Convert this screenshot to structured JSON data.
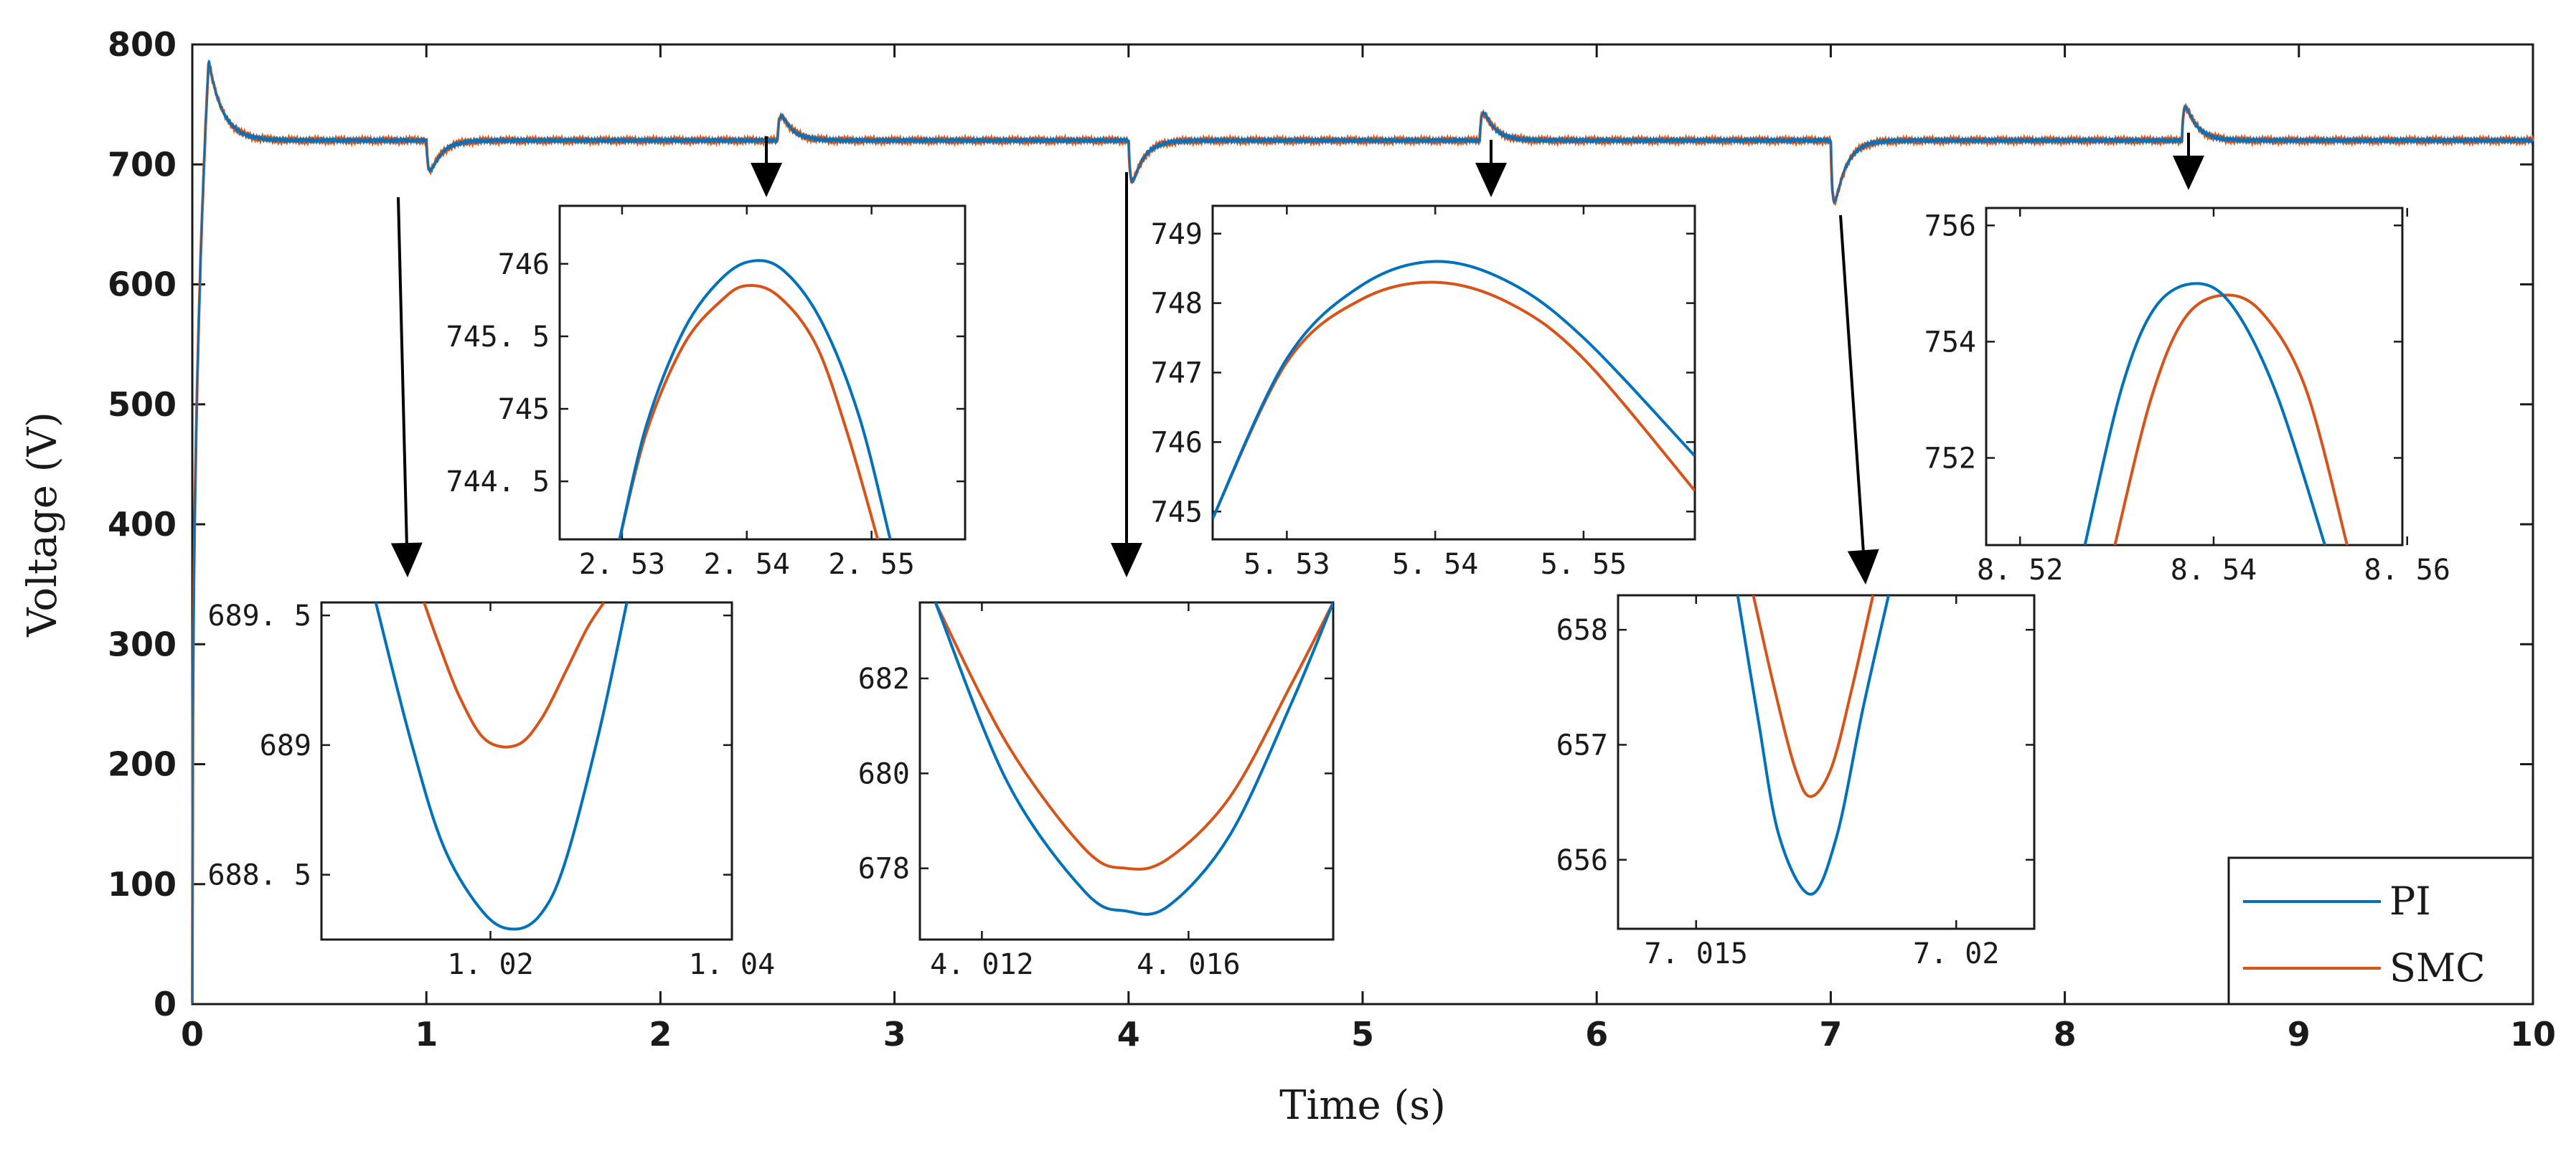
{
  "chart_data": {
    "main": {
      "type": "line",
      "xlabel": "Time (s)",
      "ylabel": "Voltage (V)",
      "xlim": [
        0,
        10
      ],
      "ylim": [
        0,
        800
      ],
      "xticks": [
        "0",
        "1",
        "2",
        "3",
        "4",
        "5",
        "6",
        "7",
        "8",
        "9",
        "10"
      ],
      "yticks": [
        "0",
        "100",
        "200",
        "300",
        "400",
        "500",
        "600",
        "700",
        "800"
      ],
      "steady_state": 720,
      "startup": {
        "peak_time": 0.07,
        "peak": 787
      },
      "events": [
        {
          "t": 1.0,
          "extreme": 688
        },
        {
          "t": 2.5,
          "extreme": 746
        },
        {
          "t": 4.0,
          "extreme": 677
        },
        {
          "t": 5.5,
          "extreme": 749
        },
        {
          "t": 7.0,
          "extreme": 655
        },
        {
          "t": 8.5,
          "extreme": 755
        }
      ],
      "series": [
        {
          "name": "PI",
          "color": "#0072bd"
        },
        {
          "name": "SMC",
          "color": "#d95319"
        }
      ],
      "legend": {
        "position": "bottom-right",
        "entries": [
          "PI",
          "SMC"
        ]
      }
    },
    "insets": [
      {
        "name": "zoom-1s",
        "xlim": [
          1.006,
          1.04
        ],
        "ylim": [
          688.25,
          689.55
        ],
        "xticks": [
          {
            "v": 1.02,
            "label": "1. 02"
          },
          {
            "v": 1.04,
            "label": "1. 04"
          }
        ],
        "yticks": [
          {
            "v": 688.5,
            "label": "688. 5"
          },
          {
            "v": 689,
            "label": "689"
          },
          {
            "v": 689.5,
            "label": "689. 5"
          }
        ],
        "PI": {
          "x": [
            1.0105,
            1.0135,
            1.0162,
            1.0195,
            1.022,
            1.0242,
            1.0262,
            1.029,
            1.0313
          ],
          "y": [
            689.55,
            689.0,
            688.6,
            688.35,
            688.29,
            688.35,
            688.55,
            689.05,
            689.55
          ]
        },
        "SMC": {
          "x": [
            1.0145,
            1.0158,
            1.0175,
            1.0196,
            1.0222,
            1.0242,
            1.0262,
            1.028,
            1.0294
          ],
          "y": [
            689.55,
            689.38,
            689.18,
            689.02,
            689.0,
            689.1,
            689.28,
            689.45,
            689.55
          ]
        }
      },
      {
        "name": "zoom-2.5s",
        "xlim": [
          2.525,
          2.5575
        ],
        "ylim": [
          744.1,
          746.4
        ],
        "xticks": [
          {
            "v": 2.53,
            "label": "2. 53"
          },
          {
            "v": 2.54,
            "label": "2. 54"
          },
          {
            "v": 2.55,
            "label": "2. 55"
          }
        ],
        "yticks": [
          {
            "v": 744.5,
            "label": "744. 5"
          },
          {
            "v": 745,
            "label": "745"
          },
          {
            "v": 745.5,
            "label": "745. 5"
          },
          {
            "v": 746,
            "label": "746"
          }
        ],
        "PI": {
          "x": [
            2.5298,
            2.532,
            2.535,
            2.538,
            2.5405,
            2.543,
            2.546,
            2.549,
            2.5515
          ],
          "y": [
            744.1,
            744.9,
            745.55,
            745.9,
            746.02,
            745.95,
            745.6,
            744.95,
            744.1
          ]
        },
        "SMC": {
          "x": [
            2.5298,
            2.532,
            2.535,
            2.538,
            2.54,
            2.5425,
            2.5455,
            2.548,
            2.5505
          ],
          "y": [
            744.1,
            744.85,
            745.45,
            745.75,
            745.85,
            745.78,
            745.45,
            744.85,
            744.1
          ]
        }
      },
      {
        "name": "zoom-5.5s",
        "xlim": [
          5.525,
          5.5575
        ],
        "ylim": [
          744.6,
          749.4
        ],
        "xticks": [
          {
            "v": 5.53,
            "label": "5. 53"
          },
          {
            "v": 5.54,
            "label": "5. 54"
          },
          {
            "v": 5.55,
            "label": "5. 55"
          }
        ],
        "yticks": [
          {
            "v": 745,
            "label": "745"
          },
          {
            "v": 746,
            "label": "746"
          },
          {
            "v": 747,
            "label": "747"
          },
          {
            "v": 748,
            "label": "748"
          },
          {
            "v": 749,
            "label": "749"
          }
        ],
        "PI": {
          "x": [
            5.525,
            5.53,
            5.535,
            5.54,
            5.545,
            5.55,
            5.5575
          ],
          "y": [
            744.9,
            747.2,
            748.25,
            748.6,
            748.3,
            747.5,
            745.8
          ]
        },
        "SMC": {
          "x": [
            5.525,
            5.53,
            5.535,
            5.54,
            5.545,
            5.55,
            5.5575
          ],
          "y": [
            744.9,
            747.15,
            748.05,
            748.3,
            748.0,
            747.2,
            745.3
          ]
        }
      },
      {
        "name": "zoom-4s",
        "xlim": [
          4.0108,
          4.0188
        ],
        "ylim": [
          676.5,
          683.6
        ],
        "xticks": [
          {
            "v": 4.012,
            "label": "4. 012"
          },
          {
            "v": 4.016,
            "label": "4. 016"
          }
        ],
        "yticks": [
          {
            "v": 678,
            "label": "678"
          },
          {
            "v": 680,
            "label": "680"
          },
          {
            "v": 682,
            "label": "682"
          }
        ],
        "PI": {
          "x": [
            4.0111,
            4.0125,
            4.014,
            4.0148,
            4.0156,
            4.0168,
            4.018,
            4.0188
          ],
          "y": [
            683.6,
            679.8,
            677.5,
            677.1,
            677.2,
            678.7,
            681.5,
            683.6
          ]
        },
        "SMC": {
          "x": [
            4.0111,
            4.0125,
            4.014,
            4.0148,
            4.0156,
            4.0168,
            4.018,
            4.0188
          ],
          "y": [
            683.6,
            680.6,
            678.4,
            678.0,
            678.2,
            679.5,
            681.9,
            683.6
          ]
        }
      },
      {
        "name": "zoom-7s",
        "xlim": [
          7.0135,
          7.0215
        ],
        "ylim": [
          655.4,
          658.3
        ],
        "xticks": [
          {
            "v": 7.015,
            "label": "7. 015"
          },
          {
            "v": 7.02,
            "label": "7. 02"
          }
        ],
        "yticks": [
          {
            "v": 656,
            "label": "656"
          },
          {
            "v": 657,
            "label": "657"
          },
          {
            "v": 658,
            "label": "658"
          }
        ],
        "PI": {
          "x": [
            7.0158,
            7.0162,
            7.0166,
            7.0172,
            7.0177,
            7.0182,
            7.0187
          ],
          "y": [
            658.3,
            657.2,
            656.2,
            655.7,
            656.2,
            657.3,
            658.3
          ]
        },
        "SMC": {
          "x": [
            7.0161,
            7.0165,
            7.0169,
            7.0172,
            7.0176,
            7.018,
            7.0184
          ],
          "y": [
            658.3,
            657.5,
            656.8,
            656.55,
            656.8,
            657.5,
            658.3
          ]
        }
      },
      {
        "name": "zoom-8.5s",
        "xlim": [
          8.5165,
          8.5595
        ],
        "ylim": [
          750.5,
          756.3
        ],
        "xticks": [
          {
            "v": 8.52,
            "label": "8. 52"
          },
          {
            "v": 8.54,
            "label": "8. 54"
          },
          {
            "v": 8.56,
            "label": "8. 56"
          }
        ],
        "yticks": [
          {
            "v": 752,
            "label": "752"
          },
          {
            "v": 754,
            "label": "754"
          },
          {
            "v": 756,
            "label": "756"
          }
        ],
        "PI": {
          "x": [
            8.5267,
            8.5305,
            8.534,
            8.5382,
            8.542,
            8.5465,
            8.5515
          ],
          "y": [
            750.5,
            753.2,
            754.6,
            755.0,
            754.6,
            753.1,
            750.5
          ]
        },
        "SMC": {
          "x": [
            8.5298,
            8.5335,
            8.537,
            8.541,
            8.545,
            8.5495,
            8.5538
          ],
          "y": [
            750.5,
            753.0,
            754.4,
            754.8,
            754.5,
            753.2,
            750.5
          ]
        }
      }
    ]
  }
}
